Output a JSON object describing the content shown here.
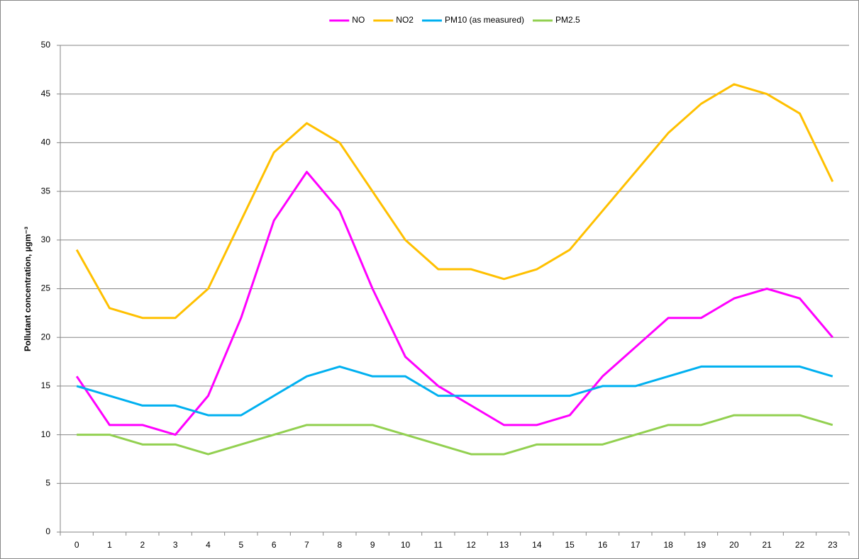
{
  "chart_data": {
    "type": "line",
    "y_label": "Pollutant concentration, µgm⁻³",
    "categories": [
      "0",
      "1",
      "2",
      "3",
      "4",
      "5",
      "6",
      "7",
      "8",
      "9",
      "10",
      "11",
      "12",
      "13",
      "14",
      "15",
      "16",
      "17",
      "18",
      "19",
      "20",
      "21",
      "22",
      "23"
    ],
    "series": [
      {
        "name": "NO",
        "color": "#ff00ff",
        "values": [
          16,
          11,
          11,
          10,
          14,
          22,
          32,
          37,
          33,
          25,
          18,
          15,
          13,
          11,
          11,
          12,
          16,
          19,
          22,
          22,
          24,
          25,
          24,
          20
        ]
      },
      {
        "name": "NO2",
        "color": "#ffc000",
        "values": [
          29,
          23,
          22,
          22,
          25,
          32,
          39,
          42,
          40,
          35,
          30,
          27,
          27,
          26,
          27,
          29,
          33,
          37,
          41,
          44,
          46,
          45,
          43,
          36
        ]
      },
      {
        "name": "PM10 (as measured)",
        "color": "#00b0f0",
        "values": [
          15,
          14,
          13,
          13,
          12,
          12,
          14,
          16,
          17,
          16,
          16,
          14,
          14,
          14,
          14,
          14,
          15,
          15,
          16,
          17,
          17,
          17,
          17,
          16
        ]
      },
      {
        "name": "PM2.5",
        "color": "#92d050",
        "values": [
          10,
          10,
          9,
          9,
          8,
          9,
          10,
          11,
          11,
          11,
          10,
          9,
          8,
          8,
          9,
          9,
          9,
          10,
          11,
          11,
          12,
          12,
          12,
          11
        ]
      }
    ],
    "ylim": [
      0,
      50
    ],
    "yticks": [
      0,
      5,
      10,
      15,
      20,
      25,
      30,
      35,
      40,
      45,
      50
    ],
    "grid": true,
    "legend": "top"
  }
}
